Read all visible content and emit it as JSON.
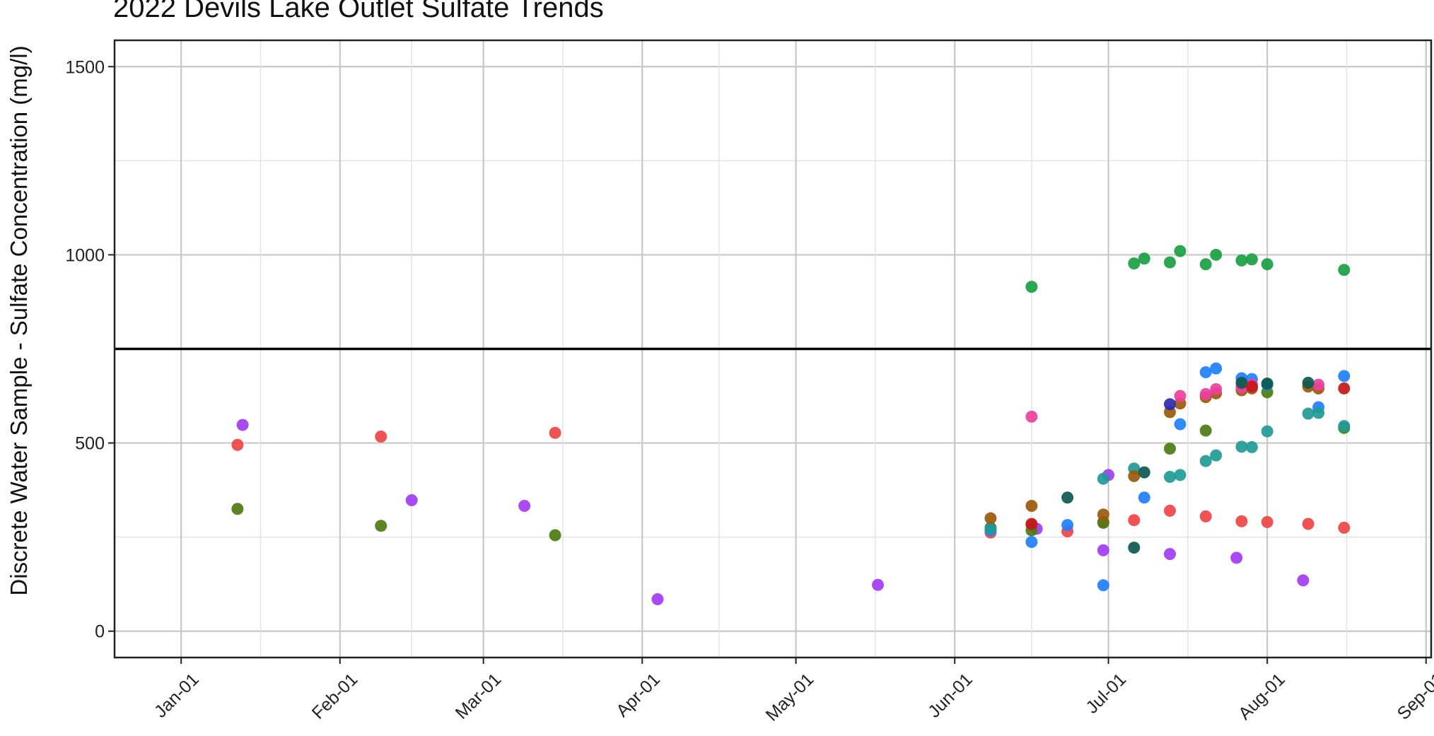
{
  "chart_data": {
    "type": "scatter",
    "title": "2022 Devils Lake Outlet Sulfate Trends",
    "xlabel": "",
    "ylabel": "Discrete Water Sample - Sulfate Concentration (mg/l)",
    "x_axis": {
      "type": "date",
      "range": [
        "2021-12-19",
        "2022-09-02"
      ],
      "ticks": [
        {
          "date": "2022-01-01",
          "label": "Jan-01"
        },
        {
          "date": "2022-02-01",
          "label": "Feb-01"
        },
        {
          "date": "2022-03-01",
          "label": "Mar-01"
        },
        {
          "date": "2022-04-01",
          "label": "Apr-01"
        },
        {
          "date": "2022-05-01",
          "label": "May-01"
        },
        {
          "date": "2022-06-01",
          "label": "Jun-01"
        },
        {
          "date": "2022-07-01",
          "label": "Jul-01"
        },
        {
          "date": "2022-08-01",
          "label": "Aug-01"
        },
        {
          "date": "2022-09-01",
          "label": "Sep-01"
        }
      ]
    },
    "y_axis": {
      "range": [
        -70,
        1570
      ],
      "ticks": [
        0,
        500,
        1000,
        1500
      ]
    },
    "grid": true,
    "legend": "none",
    "reference_line": {
      "y": 750,
      "color": "#000000"
    },
    "series": [
      {
        "color": "#ef4444",
        "points": [
          {
            "x": "2022-01-12",
            "y": 495
          },
          {
            "x": "2022-02-09",
            "y": 517
          },
          {
            "x": "2022-03-15",
            "y": 527
          },
          {
            "x": "2022-06-08",
            "y": 262
          },
          {
            "x": "2022-06-16",
            "y": 282
          },
          {
            "x": "2022-06-23",
            "y": 265
          },
          {
            "x": "2022-06-30",
            "y": 290
          },
          {
            "x": "2022-07-06",
            "y": 295
          },
          {
            "x": "2022-07-13",
            "y": 320
          },
          {
            "x": "2022-07-20",
            "y": 305
          },
          {
            "x": "2022-07-27",
            "y": 292
          },
          {
            "x": "2022-08-01",
            "y": 290
          },
          {
            "x": "2022-08-09",
            "y": 285
          },
          {
            "x": "2022-08-16",
            "y": 275
          }
        ]
      },
      {
        "color": "#a23bf2",
        "points": [
          {
            "x": "2022-01-13",
            "y": 548
          },
          {
            "x": "2022-02-15",
            "y": 348
          },
          {
            "x": "2022-03-09",
            "y": 333
          },
          {
            "x": "2022-04-04",
            "y": 85
          },
          {
            "x": "2022-05-17",
            "y": 123
          },
          {
            "x": "2022-06-17",
            "y": 272
          },
          {
            "x": "2022-06-30",
            "y": 215
          },
          {
            "x": "2022-07-01",
            "y": 415
          },
          {
            "x": "2022-07-13",
            "y": 205
          },
          {
            "x": "2022-07-26",
            "y": 195
          },
          {
            "x": "2022-08-08",
            "y": 135
          }
        ]
      },
      {
        "color": "#4d7a12",
        "points": [
          {
            "x": "2022-01-12",
            "y": 325
          },
          {
            "x": "2022-02-09",
            "y": 280
          },
          {
            "x": "2022-03-15",
            "y": 255
          },
          {
            "x": "2022-06-08",
            "y": 275
          },
          {
            "x": "2022-06-16",
            "y": 268
          },
          {
            "x": "2022-06-30",
            "y": 288
          },
          {
            "x": "2022-07-13",
            "y": 485
          },
          {
            "x": "2022-07-20",
            "y": 533
          },
          {
            "x": "2022-08-01",
            "y": 635
          },
          {
            "x": "2022-08-16",
            "y": 540
          }
        ]
      },
      {
        "color": "#1aa042",
        "points": [
          {
            "x": "2022-06-16",
            "y": 915
          },
          {
            "x": "2022-07-06",
            "y": 977
          },
          {
            "x": "2022-07-08",
            "y": 990
          },
          {
            "x": "2022-07-13",
            "y": 980
          },
          {
            "x": "2022-07-15",
            "y": 1010
          },
          {
            "x": "2022-07-20",
            "y": 975
          },
          {
            "x": "2022-07-22",
            "y": 1000
          },
          {
            "x": "2022-07-27",
            "y": 985
          },
          {
            "x": "2022-07-29",
            "y": 988
          },
          {
            "x": "2022-08-01",
            "y": 975
          },
          {
            "x": "2022-08-16",
            "y": 960
          }
        ]
      },
      {
        "color": "#1f7fff",
        "points": [
          {
            "x": "2022-06-08",
            "y": 268
          },
          {
            "x": "2022-06-16",
            "y": 237
          },
          {
            "x": "2022-06-23",
            "y": 282
          },
          {
            "x": "2022-06-30",
            "y": 122
          },
          {
            "x": "2022-07-08",
            "y": 355
          },
          {
            "x": "2022-07-15",
            "y": 550
          },
          {
            "x": "2022-07-20",
            "y": 688
          },
          {
            "x": "2022-07-22",
            "y": 698
          },
          {
            "x": "2022-07-27",
            "y": 672
          },
          {
            "x": "2022-07-29",
            "y": 670
          },
          {
            "x": "2022-08-01",
            "y": 655
          },
          {
            "x": "2022-08-11",
            "y": 595
          },
          {
            "x": "2022-08-16",
            "y": 678
          }
        ]
      },
      {
        "color": "#1f9a96",
        "points": [
          {
            "x": "2022-06-08",
            "y": 272
          },
          {
            "x": "2022-06-30",
            "y": 405
          },
          {
            "x": "2022-07-06",
            "y": 432
          },
          {
            "x": "2022-07-13",
            "y": 410
          },
          {
            "x": "2022-07-15",
            "y": 415
          },
          {
            "x": "2022-07-20",
            "y": 452
          },
          {
            "x": "2022-07-22",
            "y": 467
          },
          {
            "x": "2022-07-27",
            "y": 490
          },
          {
            "x": "2022-07-29",
            "y": 489
          },
          {
            "x": "2022-08-01",
            "y": 531
          },
          {
            "x": "2022-08-09",
            "y": 578
          },
          {
            "x": "2022-08-11",
            "y": 580
          },
          {
            "x": "2022-08-16",
            "y": 545
          }
        ]
      },
      {
        "color": "#9a5a0a",
        "points": [
          {
            "x": "2022-06-08",
            "y": 300
          },
          {
            "x": "2022-06-16",
            "y": 333
          },
          {
            "x": "2022-06-30",
            "y": 310
          },
          {
            "x": "2022-07-06",
            "y": 412
          },
          {
            "x": "2022-07-13",
            "y": 582
          },
          {
            "x": "2022-07-15",
            "y": 605
          },
          {
            "x": "2022-07-20",
            "y": 622
          },
          {
            "x": "2022-07-22",
            "y": 632
          },
          {
            "x": "2022-07-27",
            "y": 640
          },
          {
            "x": "2022-07-29",
            "y": 645
          },
          {
            "x": "2022-08-09",
            "y": 650
          },
          {
            "x": "2022-08-11",
            "y": 645
          }
        ]
      },
      {
        "color": "#ee3fa0",
        "points": [
          {
            "x": "2022-06-16",
            "y": 570
          },
          {
            "x": "2022-07-15",
            "y": 625
          },
          {
            "x": "2022-07-20",
            "y": 630
          },
          {
            "x": "2022-07-22",
            "y": 643
          },
          {
            "x": "2022-07-27",
            "y": 648
          },
          {
            "x": "2022-07-29",
            "y": 655
          },
          {
            "x": "2022-08-11",
            "y": 655
          }
        ]
      },
      {
        "color": "#0c5a4e",
        "points": [
          {
            "x": "2022-06-23",
            "y": 355
          },
          {
            "x": "2022-07-06",
            "y": 222
          },
          {
            "x": "2022-07-08",
            "y": 422
          },
          {
            "x": "2022-07-27",
            "y": 660
          },
          {
            "x": "2022-08-01",
            "y": 658
          },
          {
            "x": "2022-08-09",
            "y": 660
          }
        ]
      },
      {
        "color": "#2a2bb0",
        "points": [
          {
            "x": "2022-07-13",
            "y": 603
          }
        ]
      },
      {
        "color": "#c21818",
        "points": [
          {
            "x": "2022-06-16",
            "y": 285
          },
          {
            "x": "2022-07-29",
            "y": 650
          },
          {
            "x": "2022-08-16",
            "y": 645
          }
        ]
      }
    ]
  }
}
